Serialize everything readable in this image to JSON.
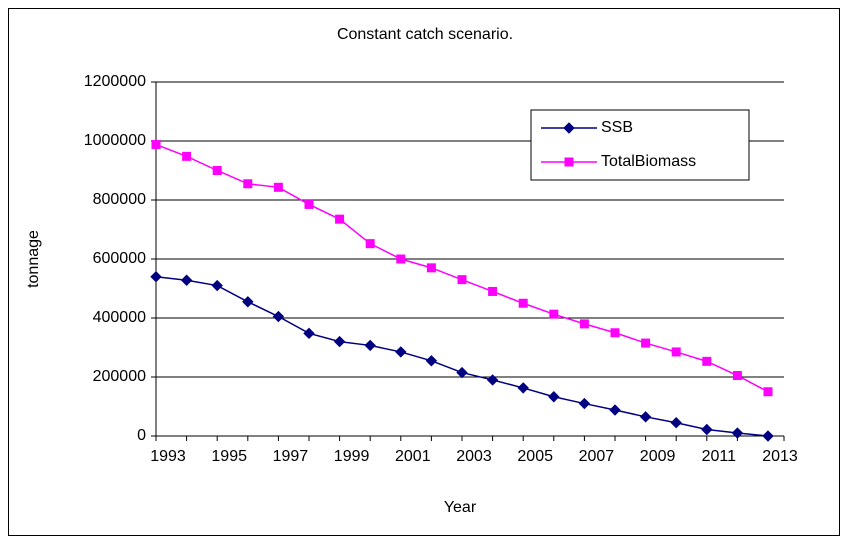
{
  "chart_data": {
    "type": "line",
    "title": "Constant catch scenario.",
    "x_label": "Year",
    "y_label": "tonnage",
    "categories": [
      "1993",
      null,
      "1995",
      null,
      "1997",
      null,
      "1999",
      null,
      "2001",
      null,
      "2003",
      null,
      "2005",
      null,
      "2007",
      null,
      "2009",
      null,
      "2011",
      null,
      "2013"
    ],
    "series": [
      {
        "name": "SSB",
        "color": "#000080",
        "marker": "diamond",
        "values": [
          540000,
          528000,
          510000,
          455000,
          405000,
          348000,
          320000,
          307000,
          285000,
          255000,
          215000,
          190000,
          163000,
          133000,
          110000,
          88000,
          65000,
          45000,
          22000,
          10000,
          0
        ]
      },
      {
        "name": "TotalBiomass",
        "color": "#ff00ff",
        "marker": "square",
        "values": [
          988000,
          948000,
          900000,
          855000,
          843000,
          785000,
          735000,
          652000,
          600000,
          570000,
          530000,
          490000,
          450000,
          413000,
          380000,
          350000,
          315000,
          285000,
          253000,
          205000,
          150000
        ]
      }
    ],
    "ylim": [
      0,
      1200000
    ],
    "yticks": [
      0,
      200000,
      400000,
      600000,
      800000,
      1000000,
      1200000
    ],
    "grid": true,
    "legend": "top-right"
  }
}
